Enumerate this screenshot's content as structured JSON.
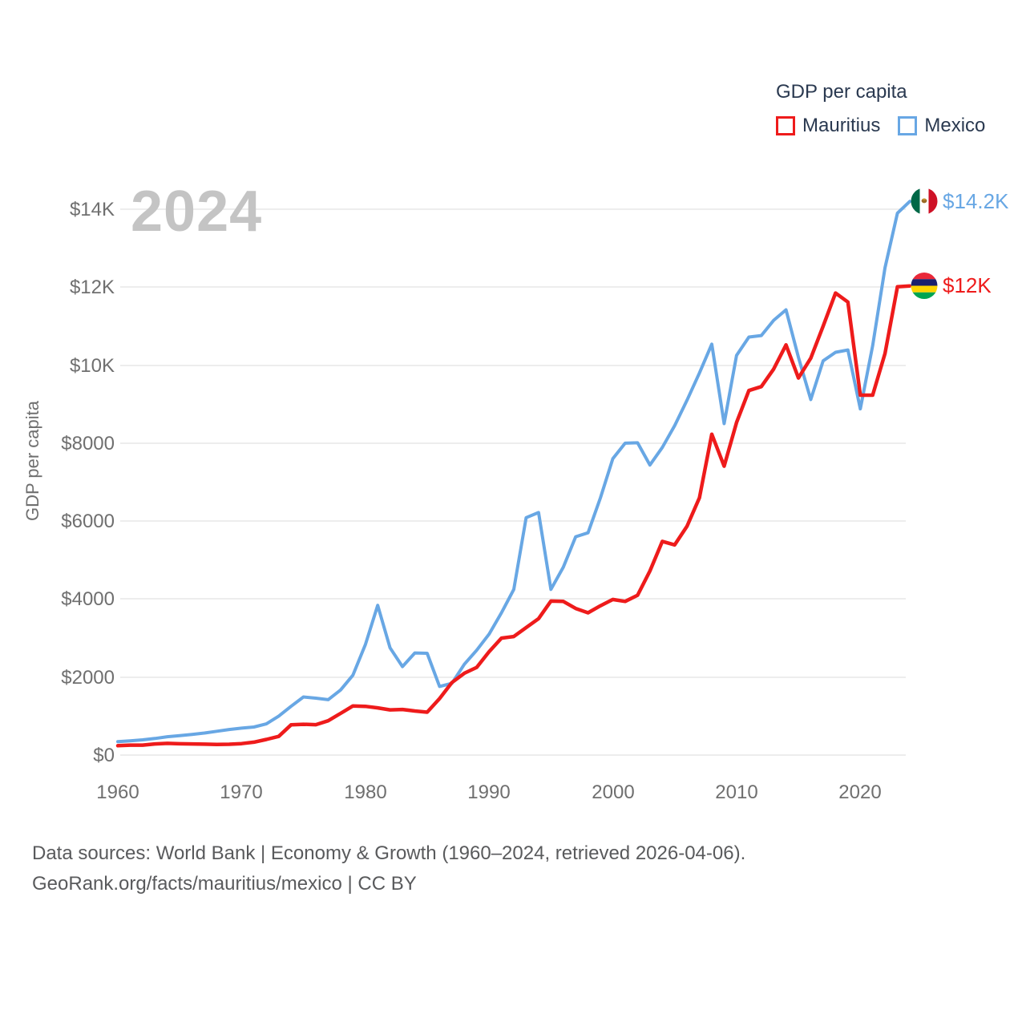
{
  "page": {
    "background": "#ffffff"
  },
  "watermark": {
    "year": "2024"
  },
  "legend": {
    "title": "GDP per capita",
    "items": [
      {
        "label": "Mauritius",
        "color": "#ee1b1b"
      },
      {
        "label": "Mexico",
        "color": "#68a7e4"
      }
    ]
  },
  "end_labels": {
    "mexico": {
      "text": "$14.2K",
      "flag": "mexico-flag"
    },
    "mauritius": {
      "text": "$12K",
      "flag": "mauritius-flag"
    }
  },
  "footer": {
    "line1": "Data sources: World Bank | Economy & Growth (1960–2024, retrieved 2026-04-06).",
    "line2": "GeoRank.org/facts/mauritius/mexico | CC BY"
  },
  "chart_data": {
    "type": "line",
    "title": "GDP per capita",
    "xlabel": "",
    "ylabel": "GDP per capita",
    "x_range": [
      1960,
      2024
    ],
    "ylim": [
      0,
      14600
    ],
    "grid": true,
    "legend_position": "top-right",
    "y_ticks": [
      {
        "value": 0,
        "label": "$0"
      },
      {
        "value": 2000,
        "label": "$2000"
      },
      {
        "value": 4000,
        "label": "$4000"
      },
      {
        "value": 6000,
        "label": "$6000"
      },
      {
        "value": 8000,
        "label": "$8000"
      },
      {
        "value": 10000,
        "label": "$10K"
      },
      {
        "value": 12000,
        "label": "$12K"
      },
      {
        "value": 14000,
        "label": "$14K"
      }
    ],
    "x_ticks": [
      {
        "value": 1960,
        "label": "1960"
      },
      {
        "value": 1970,
        "label": "1970"
      },
      {
        "value": 1980,
        "label": "1980"
      },
      {
        "value": 1990,
        "label": "1990"
      },
      {
        "value": 2000,
        "label": "2000"
      },
      {
        "value": 2010,
        "label": "2010"
      },
      {
        "value": 2020,
        "label": "2020"
      }
    ],
    "x": [
      1960,
      1961,
      1962,
      1963,
      1964,
      1965,
      1966,
      1967,
      1968,
      1969,
      1970,
      1971,
      1972,
      1973,
      1974,
      1975,
      1976,
      1977,
      1978,
      1979,
      1980,
      1981,
      1982,
      1983,
      1984,
      1985,
      1986,
      1987,
      1988,
      1989,
      1990,
      1991,
      1992,
      1993,
      1994,
      1995,
      1996,
      1997,
      1998,
      1999,
      2000,
      2001,
      2002,
      2003,
      2004,
      2005,
      2006,
      2007,
      2008,
      2009,
      2010,
      2011,
      2012,
      2013,
      2014,
      2015,
      2016,
      2017,
      2018,
      2019,
      2020,
      2021,
      2022,
      2023,
      2024
    ],
    "series": [
      {
        "name": "Mexico",
        "color": "#68a7e4",
        "final_value_label": "$14.2K",
        "values": [
          345,
          365,
          390,
          425,
          470,
          500,
          530,
          565,
          610,
          655,
          690,
          720,
          800,
          1000,
          1250,
          1490,
          1460,
          1420,
          1670,
          2050,
          2830,
          3840,
          2750,
          2270,
          2620,
          2610,
          1760,
          1840,
          2330,
          2690,
          3100,
          3650,
          4250,
          6090,
          6220,
          4250,
          4820,
          5600,
          5700,
          6600,
          7600,
          8000,
          8010,
          7440,
          7890,
          8450,
          9100,
          9800,
          10540,
          8500,
          10250,
          10720,
          10760,
          11150,
          11420,
          10200,
          9120,
          10110,
          10330,
          10390,
          8880,
          10500,
          12500,
          13900,
          14200
        ]
      },
      {
        "name": "Mauritius",
        "color": "#ee1b1b",
        "final_value_label": "$12K",
        "values": [
          240,
          255,
          255,
          285,
          300,
          290,
          285,
          280,
          272,
          278,
          295,
          330,
          400,
          480,
          775,
          790,
          780,
          880,
          1070,
          1260,
          1250,
          1210,
          1160,
          1170,
          1130,
          1100,
          1450,
          1860,
          2100,
          2250,
          2650,
          3000,
          3040,
          3270,
          3500,
          3950,
          3940,
          3760,
          3650,
          3830,
          3990,
          3940,
          4100,
          4720,
          5480,
          5390,
          5870,
          6600,
          8230,
          7410,
          8530,
          9350,
          9450,
          9900,
          10520,
          9670,
          10180,
          11000,
          11850,
          11620,
          9230,
          9230,
          10300,
          12010,
          12030
        ]
      }
    ]
  }
}
